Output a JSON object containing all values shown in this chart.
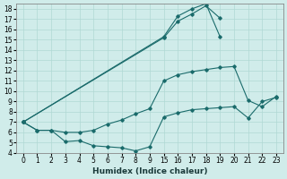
{
  "title": "",
  "xlabel": "Humidex (Indice chaleur)",
  "bg_color": "#d0ecea",
  "grid_color": "#b0d8d4",
  "line_color": "#1a6b6b",
  "ylim": [
    4,
    18.5
  ],
  "xlim": [
    -0.5,
    18.5
  ],
  "yticks": [
    4,
    5,
    6,
    7,
    8,
    9,
    10,
    11,
    12,
    13,
    14,
    15,
    16,
    17,
    18
  ],
  "xtick_positions": [
    0,
    1,
    2,
    3,
    4,
    5,
    6,
    7,
    8,
    9,
    10,
    11,
    12,
    13,
    14,
    15,
    16,
    17,
    18
  ],
  "xtick_labels": [
    "0",
    "1",
    "2",
    "3",
    "4",
    "5",
    "6",
    "7",
    "8",
    "9",
    "15",
    "16",
    "17",
    "18",
    "19",
    "20",
    "21",
    "22",
    "23"
  ],
  "line1_x": [
    0,
    1,
    2,
    3,
    4,
    5,
    6,
    7,
    8,
    9,
    10,
    11,
    12,
    13,
    14,
    15,
    16,
    17,
    18
  ],
  "line1_y": [
    7.0,
    6.2,
    6.2,
    5.1,
    5.2,
    4.7,
    4.6,
    4.5,
    4.2,
    4.6,
    7.5,
    7.9,
    8.2,
    8.3,
    8.4,
    8.5,
    7.4,
    9.0,
    9.4
  ],
  "line2_x": [
    0,
    1,
    2,
    3,
    4,
    5,
    6,
    7,
    8,
    9,
    10,
    11,
    12,
    13,
    14,
    15,
    16,
    17,
    18
  ],
  "line2_y": [
    7.0,
    6.2,
    6.2,
    6.0,
    6.0,
    6.2,
    6.8,
    7.2,
    7.8,
    8.3,
    11.0,
    11.6,
    11.9,
    12.1,
    12.3,
    12.4,
    9.1,
    8.5,
    9.5
  ],
  "line3_x": [
    0,
    10,
    11,
    12,
    13,
    14
  ],
  "line3_y": [
    7.0,
    15.2,
    16.8,
    17.5,
    18.3,
    17.1
  ],
  "line4_x": [
    0,
    10,
    11,
    12,
    13,
    14
  ],
  "line4_y": [
    7.0,
    15.3,
    17.3,
    18.0,
    18.5,
    15.3
  ]
}
